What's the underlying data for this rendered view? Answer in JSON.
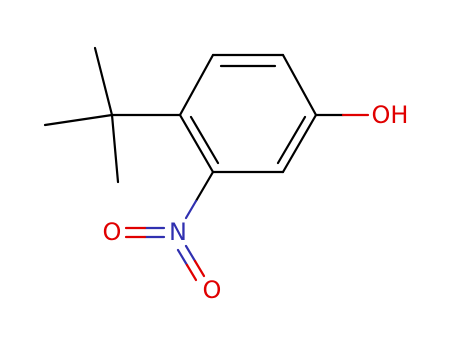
{
  "atoms": [
    {
      "label": "OH"
    },
    {
      "label": "N"
    },
    {
      "label": "O"
    },
    {
      "label": "O"
    }
  ]
}
